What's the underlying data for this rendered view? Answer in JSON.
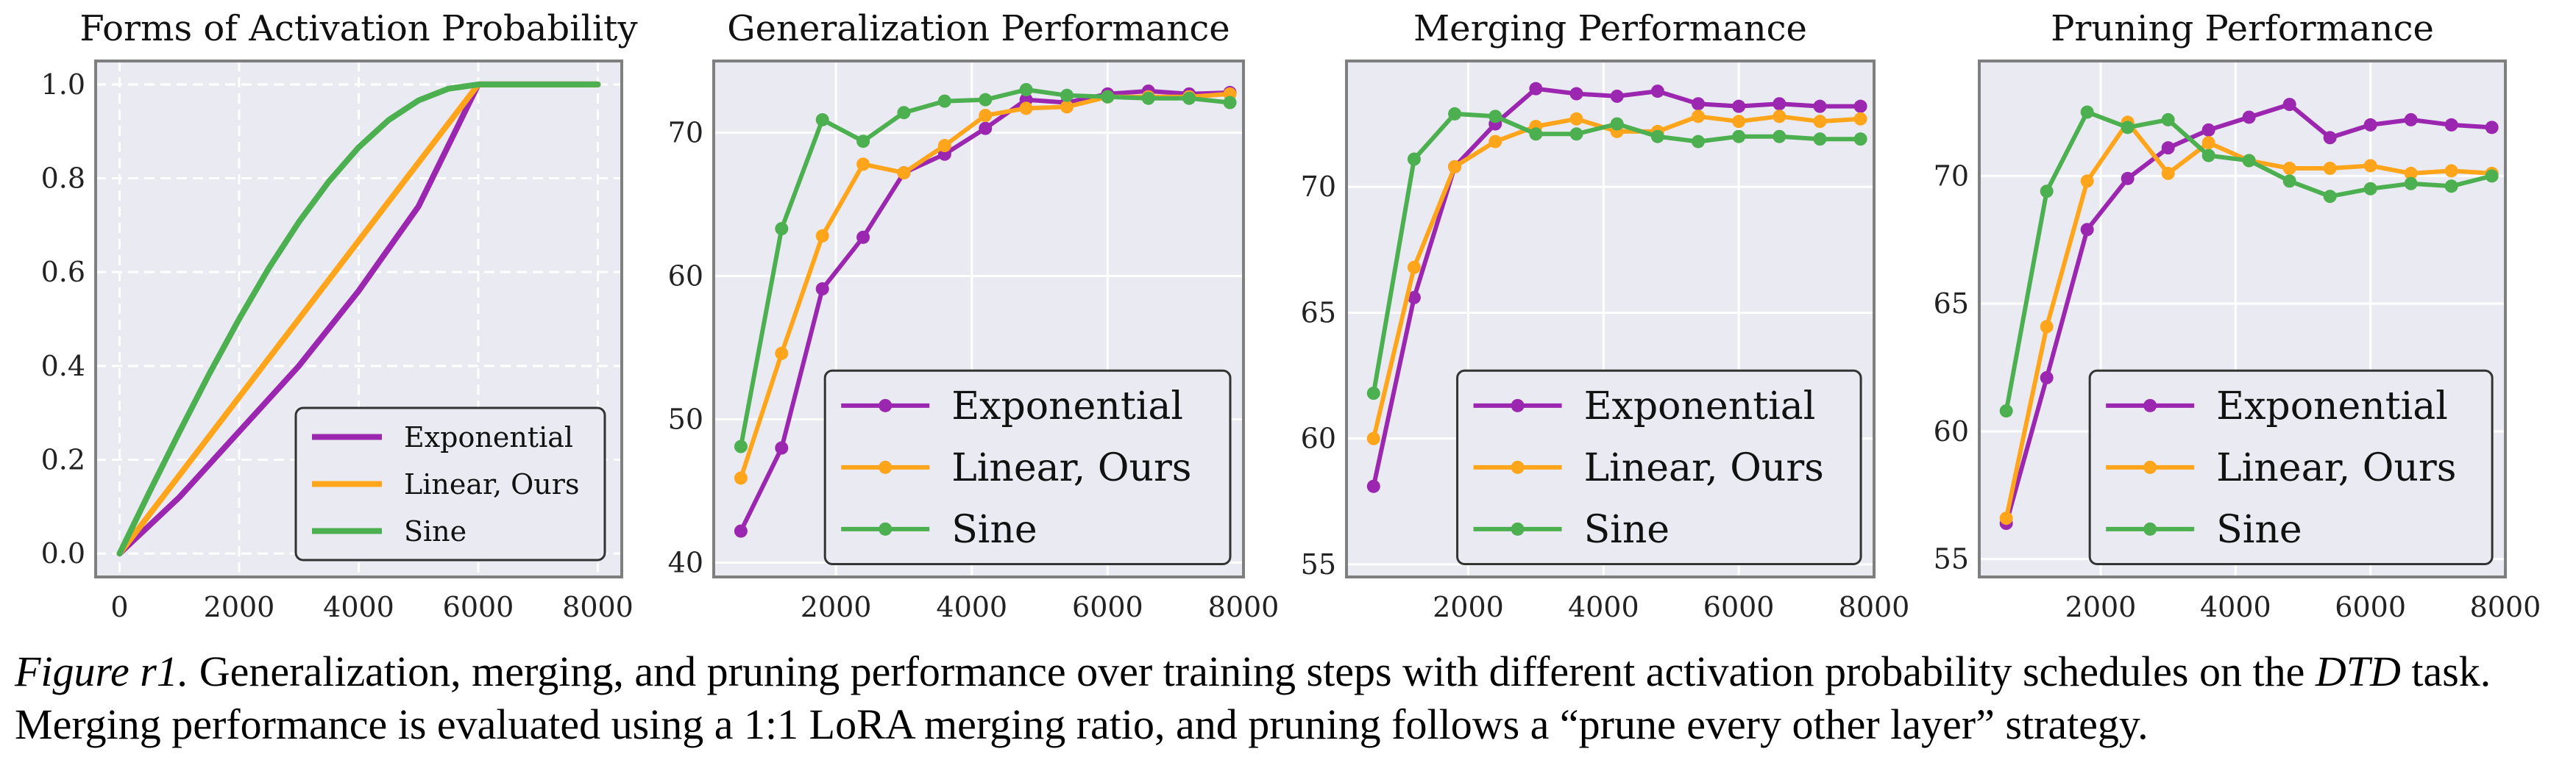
{
  "figure": {
    "caption": {
      "label": "Figure r1.",
      "part1": " Generalization, merging, and pruning performance over training steps with different activation probability schedules on the ",
      "task": "DTD",
      "part2": " task. Merging performance is evaluated using a 1:1 LoRA merging ratio, and pruning follows a “prune every other layer” strategy."
    }
  },
  "colors": {
    "exponential": "#9b27b0",
    "linear": "#ffa51c",
    "sine": "#4caf50",
    "plot_bg": "#eaeaf2",
    "grid": "#ffffff",
    "frame": "#7f7f7f"
  },
  "chart_data": [
    {
      "type": "line",
      "title": "Forms of Activation Probability",
      "xlim": [
        -400,
        8400
      ],
      "ylim": [
        -0.05,
        1.05
      ],
      "xticks": [
        0,
        2000,
        4000,
        6000,
        8000
      ],
      "yticks": [
        0.0,
        0.2,
        0.4,
        0.6,
        0.8,
        1.0
      ],
      "ytick_labels": [
        "0.0",
        "0.2",
        "0.4",
        "0.6",
        "0.8",
        "1.0"
      ],
      "grid": "dashed",
      "legend": "bottom-right",
      "markers": false,
      "series": [
        {
          "name": "Exponential",
          "color": "#9b27b0",
          "x": [
            0,
            1000,
            2000,
            3000,
            4000,
            5000,
            6000,
            7000,
            8000
          ],
          "y": [
            0.0,
            0.12,
            0.26,
            0.4,
            0.56,
            0.74,
            1.0,
            1.0,
            1.0
          ]
        },
        {
          "name": "Linear, Ours",
          "color": "#ffa51c",
          "x": [
            0,
            6000,
            8000
          ],
          "y": [
            0.0,
            1.0,
            1.0
          ]
        },
        {
          "name": "Sine",
          "color": "#4caf50",
          "x": [
            0,
            500,
            1000,
            1500,
            2000,
            2500,
            3000,
            3500,
            4000,
            4500,
            5000,
            5500,
            6000,
            7000,
            8000
          ],
          "y": [
            0.0,
            0.131,
            0.259,
            0.383,
            0.5,
            0.609,
            0.707,
            0.793,
            0.866,
            0.924,
            0.966,
            0.991,
            1.0,
            1.0,
            1.0
          ]
        }
      ]
    },
    {
      "type": "line",
      "title": "Generalization Performance",
      "xlim": [
        200,
        8000
      ],
      "ylim": [
        39,
        75
      ],
      "xticks": [
        2000,
        4000,
        6000,
        8000
      ],
      "yticks": [
        40,
        50,
        60,
        70
      ],
      "ytick_labels": [
        "40",
        "50",
        "60",
        "70"
      ],
      "grid": "solid",
      "legend": "bottom-right",
      "markers": true,
      "series": [
        {
          "name": "Exponential",
          "color": "#9b27b0",
          "x": [
            600,
            1200,
            1800,
            2400,
            3000,
            3600,
            4200,
            4800,
            5400,
            6000,
            6600,
            7200,
            7800
          ],
          "y": [
            42.2,
            48.0,
            59.1,
            62.7,
            67.2,
            68.5,
            70.3,
            72.3,
            72.1,
            72.7,
            72.9,
            72.7,
            72.8
          ]
        },
        {
          "name": "Linear, Ours",
          "color": "#ffa51c",
          "x": [
            600,
            1200,
            1800,
            2400,
            3000,
            3600,
            4200,
            4800,
            5400,
            6000,
            6600,
            7200,
            7800
          ],
          "y": [
            45.9,
            54.6,
            62.8,
            67.8,
            67.2,
            69.1,
            71.2,
            71.7,
            71.8,
            72.5,
            72.5,
            72.5,
            72.7
          ]
        },
        {
          "name": "Sine",
          "color": "#4caf50",
          "x": [
            600,
            1200,
            1800,
            2400,
            3000,
            3600,
            4200,
            4800,
            5400,
            6000,
            6600,
            7200,
            7800
          ],
          "y": [
            48.1,
            63.3,
            70.9,
            69.4,
            71.4,
            72.2,
            72.3,
            73.0,
            72.6,
            72.5,
            72.4,
            72.4,
            72.1
          ]
        }
      ]
    },
    {
      "type": "line",
      "title": "Merging Performance",
      "xlim": [
        200,
        8000
      ],
      "ylim": [
        54.5,
        75.0
      ],
      "xticks": [
        2000,
        4000,
        6000,
        8000
      ],
      "yticks": [
        55,
        60,
        65,
        70
      ],
      "ytick_labels": [
        "55",
        "60",
        "65",
        "70"
      ],
      "grid": "solid",
      "legend": "bottom-right",
      "markers": true,
      "series": [
        {
          "name": "Exponential",
          "color": "#9b27b0",
          "x": [
            600,
            1200,
            1800,
            2400,
            3000,
            3600,
            4200,
            4800,
            5400,
            6000,
            6600,
            7200,
            7800
          ],
          "y": [
            58.1,
            65.6,
            70.8,
            72.5,
            73.9,
            73.7,
            73.6,
            73.8,
            73.3,
            73.2,
            73.3,
            73.2,
            73.2
          ]
        },
        {
          "name": "Linear, Ours",
          "color": "#ffa51c",
          "x": [
            600,
            1200,
            1800,
            2400,
            3000,
            3600,
            4200,
            4800,
            5400,
            6000,
            6600,
            7200,
            7800
          ],
          "y": [
            60.0,
            66.8,
            70.8,
            71.8,
            72.4,
            72.7,
            72.2,
            72.2,
            72.8,
            72.6,
            72.8,
            72.6,
            72.7
          ]
        },
        {
          "name": "Sine",
          "color": "#4caf50",
          "x": [
            600,
            1200,
            1800,
            2400,
            3000,
            3600,
            4200,
            4800,
            5400,
            6000,
            6600,
            7200,
            7800
          ],
          "y": [
            61.8,
            71.1,
            72.9,
            72.8,
            72.1,
            72.1,
            72.5,
            72.0,
            71.8,
            72.0,
            72.0,
            71.9,
            71.9
          ]
        }
      ]
    },
    {
      "type": "line",
      "title": "Pruning Performance",
      "xlim": [
        200,
        8000
      ],
      "ylim": [
        54.3,
        74.5
      ],
      "xticks": [
        2000,
        4000,
        6000,
        8000
      ],
      "yticks": [
        55,
        60,
        65,
        70
      ],
      "ytick_labels": [
        "55",
        "60",
        "65",
        "70"
      ],
      "grid": "solid",
      "legend": "bottom-right",
      "markers": true,
      "series": [
        {
          "name": "Exponential",
          "color": "#9b27b0",
          "x": [
            600,
            1200,
            1800,
            2400,
            3000,
            3600,
            4200,
            4800,
            5400,
            6000,
            6600,
            7200,
            7800
          ],
          "y": [
            56.4,
            62.1,
            67.9,
            69.9,
            71.1,
            71.8,
            72.3,
            72.8,
            71.5,
            72.0,
            72.2,
            72.0,
            71.9
          ]
        },
        {
          "name": "Linear, Ours",
          "color": "#ffa51c",
          "x": [
            600,
            1200,
            1800,
            2400,
            3000,
            3600,
            4200,
            4800,
            5400,
            6000,
            6600,
            7200,
            7800
          ],
          "y": [
            56.6,
            64.1,
            69.8,
            72.1,
            70.1,
            71.3,
            70.6,
            70.3,
            70.3,
            70.4,
            70.1,
            70.2,
            70.1
          ]
        },
        {
          "name": "Sine",
          "color": "#4caf50",
          "x": [
            600,
            1200,
            1800,
            2400,
            3000,
            3600,
            4200,
            4800,
            5400,
            6000,
            6600,
            7200,
            7800
          ],
          "y": [
            60.8,
            69.4,
            72.5,
            71.9,
            72.2,
            70.8,
            70.6,
            69.8,
            69.2,
            69.5,
            69.7,
            69.6,
            70.0
          ]
        }
      ]
    }
  ]
}
